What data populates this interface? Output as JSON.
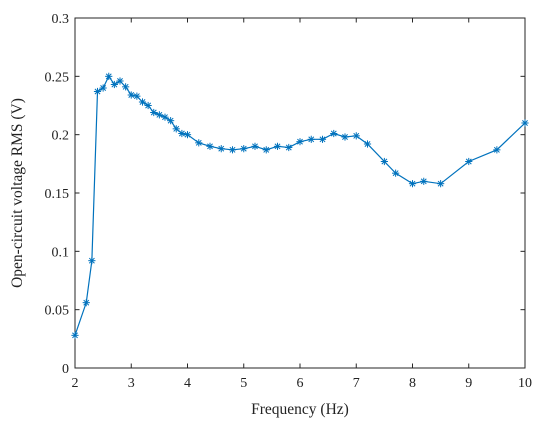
{
  "chart_data": {
    "type": "line",
    "xlabel": "Frequency (Hz)",
    "ylabel": "Open-circuit voltage RMS (V)",
    "xlim": [
      2,
      10
    ],
    "ylim": [
      0,
      0.3
    ],
    "xticks": [
      2,
      3,
      4,
      5,
      6,
      7,
      8,
      9,
      10
    ],
    "yticks": [
      0,
      0.05,
      0.1,
      0.15,
      0.2,
      0.25,
      0.3
    ],
    "xtick_labels": [
      "2",
      "3",
      "4",
      "5",
      "6",
      "7",
      "8",
      "9",
      "10"
    ],
    "ytick_labels": [
      "0",
      "0.05",
      "0.1",
      "0.15",
      "0.2",
      "0.25",
      "0.3"
    ],
    "grid": false,
    "box": true,
    "marker": "asterisk",
    "color": "#0072BD",
    "series": [
      {
        "x": [
          2.0,
          2.2,
          2.3,
          2.4,
          2.5,
          2.6,
          2.7,
          2.8,
          2.9,
          3.0,
          3.1,
          3.2,
          3.3,
          3.4,
          3.5,
          3.6,
          3.7,
          3.8,
          3.9,
          4.0,
          4.2,
          4.4,
          4.6,
          4.8,
          5.0,
          5.2,
          5.4,
          5.6,
          5.8,
          6.0,
          6.2,
          6.4,
          6.6,
          6.8,
          7.0,
          7.2,
          7.5,
          7.7,
          8.0,
          8.2,
          8.5,
          9.0,
          9.5,
          10.0
        ],
        "y": [
          0.028,
          0.056,
          0.092,
          0.237,
          0.24,
          0.25,
          0.243,
          0.246,
          0.241,
          0.234,
          0.233,
          0.228,
          0.225,
          0.219,
          0.217,
          0.215,
          0.212,
          0.205,
          0.201,
          0.2,
          0.193,
          0.19,
          0.188,
          0.187,
          0.188,
          0.19,
          0.187,
          0.19,
          0.189,
          0.194,
          0.196,
          0.196,
          0.201,
          0.198,
          0.199,
          0.192,
          0.177,
          0.167,
          0.158,
          0.16,
          0.158,
          0.177,
          0.187,
          0.21
        ]
      }
    ]
  }
}
